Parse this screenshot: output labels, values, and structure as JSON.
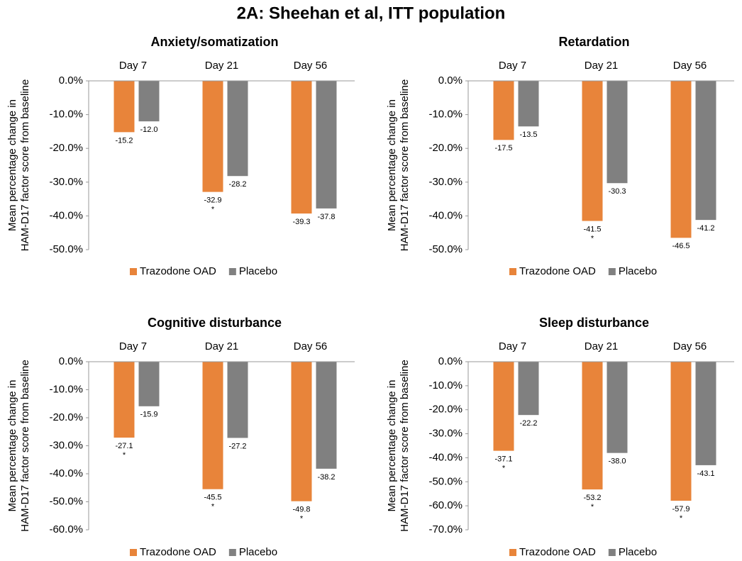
{
  "title": "2A: Sheehan et al, ITT population",
  "chart_data": [
    {
      "type": "bar",
      "title": "Anxiety/somatization",
      "ylabel": [
        "Mean percentage change in",
        "HAM-D17 factor score from baseline"
      ],
      "categories": [
        "Day 7",
        "Day 21",
        "Day 56"
      ],
      "series": [
        {
          "name": "Trazodone OAD",
          "color": "#e8843a",
          "values": [
            -15.2,
            -32.9,
            -39.3
          ],
          "significance": [
            null,
            "*",
            null
          ]
        },
        {
          "name": "Placebo",
          "color": "#808080",
          "values": [
            -12.0,
            -28.2,
            -37.8
          ],
          "value_labels": [
            "-12.0",
            "-28.2",
            "-37.8"
          ]
        }
      ],
      "ylim": [
        -50,
        0
      ],
      "yticks": [
        {
          "value": 0,
          "label": "0.0%"
        },
        {
          "value": -10,
          "label": "-10.0%"
        },
        {
          "value": -20,
          "label": "-20.0%"
        },
        {
          "value": -30,
          "label": "-30.0%"
        },
        {
          "value": -40,
          "label": "-40.0%"
        },
        {
          "value": -50,
          "label": "-50.0%"
        }
      ],
      "legend": "bottom"
    },
    {
      "type": "bar",
      "title": "Retardation",
      "ylabel": [
        "Mean percentage change in",
        "HAM-D17 factor score from baseline"
      ],
      "categories": [
        "Day 7",
        "Day 21",
        "Day 56"
      ],
      "series": [
        {
          "name": "Trazodone OAD",
          "color": "#e8843a",
          "values": [
            -17.5,
            -41.5,
            -46.5
          ],
          "significance": [
            null,
            "*",
            null
          ]
        },
        {
          "name": "Placebo",
          "color": "#808080",
          "values": [
            -13.5,
            -30.3,
            -41.2
          ]
        }
      ],
      "ylim": [
        -50,
        0
      ],
      "yticks": [
        {
          "value": 0,
          "label": "0.0%"
        },
        {
          "value": -10,
          "label": "-10.0%"
        },
        {
          "value": -20,
          "label": "-20.0%"
        },
        {
          "value": -30,
          "label": "-30.0%"
        },
        {
          "value": -40,
          "label": "-40.0%"
        },
        {
          "value": -50,
          "label": "-50.0%"
        }
      ],
      "legend": "bottom"
    },
    {
      "type": "bar",
      "title": "Cognitive disturbance",
      "ylabel": [
        "Mean percentage change in",
        "HAM-D17 factor score from baseline"
      ],
      "categories": [
        "Day 7",
        "Day 21",
        "Day 56"
      ],
      "series": [
        {
          "name": "Trazodone OAD",
          "color": "#e8843a",
          "values": [
            -27.1,
            -45.5,
            -49.8
          ],
          "significance": [
            "*",
            "*",
            "*"
          ]
        },
        {
          "name": "Placebo",
          "color": "#808080",
          "values": [
            -15.9,
            -27.2,
            -38.2
          ]
        }
      ],
      "ylim": [
        -60,
        0
      ],
      "yticks": [
        {
          "value": 0,
          "label": "0.0%"
        },
        {
          "value": -10,
          "label": "-10.0%"
        },
        {
          "value": -20,
          "label": "-20.0%"
        },
        {
          "value": -30,
          "label": "-30.0%"
        },
        {
          "value": -40,
          "label": "-40.0%"
        },
        {
          "value": -50,
          "label": "-50.0%"
        },
        {
          "value": -60,
          "label": "-60.0%"
        }
      ],
      "legend": "bottom"
    },
    {
      "type": "bar",
      "title": "Sleep disturbance",
      "ylabel": [
        "Mean percentage change in",
        "HAM-D17 factor score from baseline"
      ],
      "categories": [
        "Day 7",
        "Day 21",
        "Day 56"
      ],
      "series": [
        {
          "name": "Trazodone OAD",
          "color": "#e8843a",
          "values": [
            -37.1,
            -53.2,
            -57.9
          ],
          "significance": [
            "*",
            "*",
            "*"
          ]
        },
        {
          "name": "Placebo",
          "color": "#808080",
          "values": [
            -22.2,
            -38.0,
            -43.1
          ],
          "value_labels": [
            "-22.2",
            "-38.0",
            "-43.1"
          ]
        }
      ],
      "ylim": [
        -70,
        0
      ],
      "yticks": [
        {
          "value": 0,
          "label": "0.0%"
        },
        {
          "value": -10,
          "label": "-10.0%"
        },
        {
          "value": -20,
          "label": "-20.0%"
        },
        {
          "value": -30,
          "label": "-30.0%"
        },
        {
          "value": -40,
          "label": "-40.0%"
        },
        {
          "value": -50,
          "label": "-50.0%"
        },
        {
          "value": -60,
          "label": "-60.0%"
        },
        {
          "value": -70,
          "label": "-70.0%"
        }
      ],
      "legend": "bottom"
    }
  ]
}
